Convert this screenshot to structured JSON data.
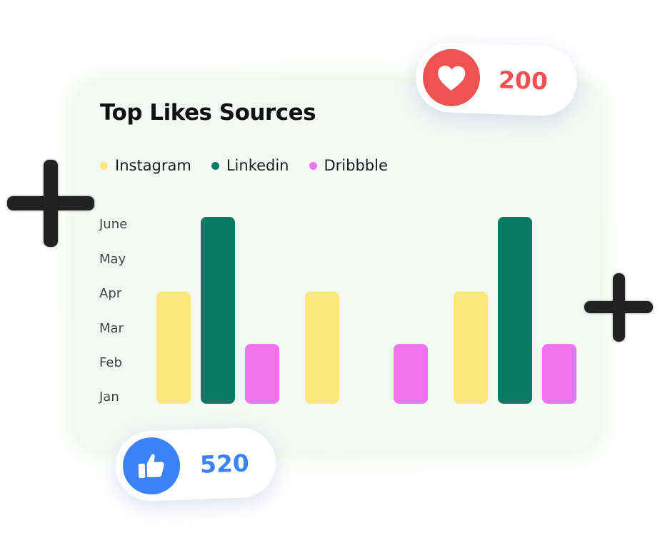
{
  "chart_data": {
    "type": "bar",
    "title": "Top Likes Sources",
    "categories": [
      "",
      "",
      ""
    ],
    "y_tick_labels": [
      "Jan",
      "Feb",
      "Mar",
      "Apr",
      "May",
      "June"
    ],
    "ylim": [
      0,
      5
    ],
    "series": [
      {
        "name": "Instagram",
        "color": "#fde77d",
        "values": [
          3,
          3,
          3
        ]
      },
      {
        "name": "Linkedin",
        "color": "#067a63",
        "values": [
          5,
          0,
          5
        ]
      },
      {
        "name": "Dribbble",
        "color": "#f073f0",
        "values": [
          1.6,
          1.6,
          1.6
        ]
      }
    ],
    "grid": false,
    "legend": "top-left"
  },
  "likes_badge": {
    "icon": "heart-icon",
    "count": "200",
    "color": "#f05252"
  },
  "thumbs_badge": {
    "icon": "thumbs-up-icon",
    "count": "520",
    "color": "#3b82f6"
  },
  "decorations": {
    "plus_icon": "plus-icon"
  }
}
